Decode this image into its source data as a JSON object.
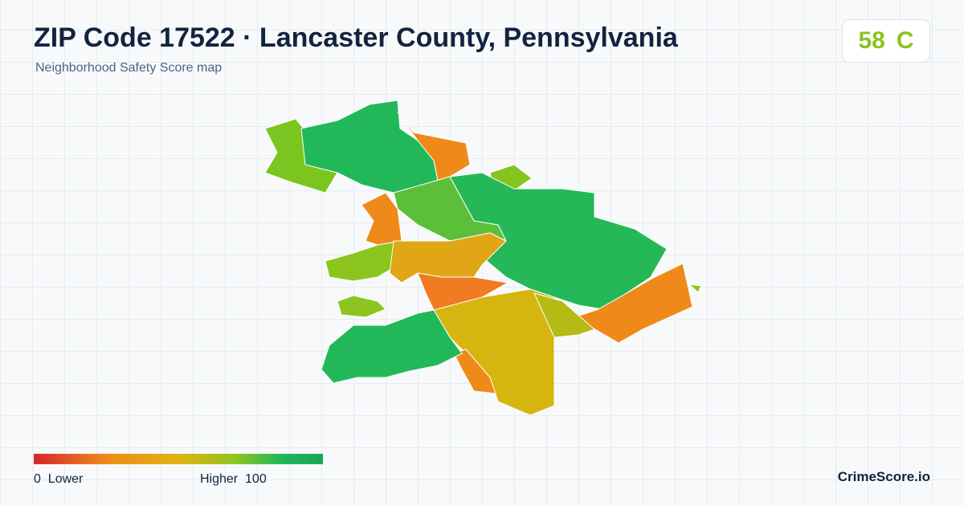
{
  "header": {
    "title": "ZIP Code 17522 · Lancaster County, Pennsylvania",
    "subtitle": "Neighborhood Safety Score map"
  },
  "score": {
    "value": "58",
    "grade": "C"
  },
  "legend": {
    "min": "0",
    "min_label": "Lower",
    "max_label": "Higher",
    "max": "100"
  },
  "brand": "CrimeScore.io"
}
